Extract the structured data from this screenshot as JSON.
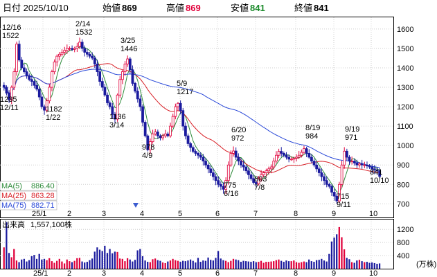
{
  "header": {
    "date_label": "日付 2025/10/10",
    "open_label": "始値",
    "open_value": "869",
    "high_label": "高値",
    "high_value": "869",
    "low_label": "安値",
    "low_value": "841",
    "close_label": "終値",
    "close_value": "841"
  },
  "colors": {
    "up": "#e0003a",
    "down": "#1b1b9e",
    "ma5": "#2e8b3a",
    "ma25": "#d81f26",
    "ma75": "#2a49d8",
    "open_color": "#000000",
    "high_color": "#e0003a",
    "low_color": "#1a8a2a",
    "close_color": "#000000"
  },
  "chart_data": [
    {
      "type": "candlestick",
      "title": "",
      "ylim": [
        630,
        1660
      ],
      "yticks": [
        700,
        800,
        900,
        1000,
        1100,
        1200,
        1300,
        1400,
        1500,
        1600
      ],
      "x_tick_labels": [
        "25/1",
        "2",
        "3",
        "4",
        "5",
        "6",
        "7",
        "8",
        "9",
        "10"
      ],
      "bottom_left_label": "25/1",
      "moving_averages": [
        {
          "name": "MA(5)",
          "value": "886.40"
        },
        {
          "name": "MA(25)",
          "value": "863.28"
        },
        {
          "name": "MA(75)",
          "value": "882.71"
        }
      ],
      "annotations": [
        {
          "date": "12/16",
          "value": "1522"
        },
        {
          "date": "12/11",
          "value": "1235"
        },
        {
          "date": "1/22",
          "value": "1182"
        },
        {
          "date": "2/14",
          "value": "1532"
        },
        {
          "date": "3/14",
          "value": "1136"
        },
        {
          "date": "3/25",
          "value": "1446"
        },
        {
          "date": "4/9",
          "value": "978"
        },
        {
          "date": "5/9",
          "value": "1217"
        },
        {
          "date": "6/16",
          "value": "775"
        },
        {
          "date": "6/20",
          "value": "972"
        },
        {
          "date": "7/8",
          "value": "803"
        },
        {
          "date": "8/19",
          "value": "984"
        },
        {
          "date": "9/11",
          "value": "715"
        },
        {
          "date": "9/19",
          "value": "971"
        },
        {
          "date": "10/10",
          "value": "841"
        }
      ],
      "price_anchors": [
        1300,
        1270,
        1235,
        1300,
        1380,
        1522,
        1440,
        1400,
        1380,
        1360,
        1340,
        1330,
        1310,
        1290,
        1250,
        1200,
        1182,
        1230,
        1300,
        1380,
        1430,
        1460,
        1470,
        1480,
        1490,
        1500,
        1500,
        1495,
        1500,
        1510,
        1532,
        1500,
        1480,
        1470,
        1460,
        1450,
        1420,
        1380,
        1330,
        1300,
        1260,
        1220,
        1200,
        1160,
        1136,
        1260,
        1340,
        1380,
        1420,
        1446,
        1390,
        1320,
        1280,
        1240,
        1200,
        1120,
        1050,
        978,
        1020,
        1060,
        1070,
        1050,
        1040,
        1050,
        1060,
        1050,
        1100,
        1150,
        1200,
        1217,
        1180,
        1100,
        1050,
        1010,
        990,
        970,
        960,
        950,
        940,
        920,
        900,
        880,
        860,
        840,
        820,
        800,
        790,
        775,
        820,
        900,
        960,
        972,
        940,
        920,
        900,
        890,
        870,
        850,
        830,
        810,
        803,
        830,
        850,
        860,
        870,
        880,
        890,
        920,
        950,
        970,
        960,
        950,
        940,
        930,
        930,
        935,
        940,
        950,
        965,
        984,
        960,
        940,
        920,
        900,
        880,
        860,
        840,
        820,
        800,
        790,
        760,
        740,
        715,
        800,
        900,
        971,
        940,
        920,
        920,
        910,
        900,
        905,
        900,
        900,
        895,
        890,
        880,
        875,
        869,
        841
      ]
    },
    {
      "type": "bar",
      "title": "出来高",
      "value_label": "1,557,100株",
      "unit": "(万株)",
      "ylim": [
        0,
        1500
      ],
      "yticks": [
        400,
        800,
        1200
      ],
      "x_tick_labels": [
        "25/1",
        "2",
        "3",
        "4",
        "5",
        "6",
        "7",
        "8",
        "9",
        "10"
      ],
      "values": [
        650,
        1420,
        480,
        350,
        600,
        250,
        200,
        280,
        300,
        220,
        260,
        380,
        420,
        300,
        450,
        280,
        300,
        260,
        320,
        230,
        180,
        240,
        300,
        220,
        160,
        280,
        230,
        200,
        240,
        320,
        330,
        220,
        190,
        210,
        260,
        310,
        520,
        650,
        580,
        540,
        700,
        480,
        600,
        470,
        520,
        510,
        310,
        300,
        230,
        320,
        280,
        220,
        270,
        560,
        600,
        380,
        250,
        210,
        200,
        290,
        310,
        260,
        240,
        190,
        170,
        220,
        250,
        300,
        260,
        240,
        210,
        240,
        230,
        250,
        280,
        240,
        190,
        330,
        210,
        250,
        240,
        340,
        270,
        250,
        330,
        540,
        310,
        260,
        240,
        200,
        240,
        300,
        280,
        260,
        210,
        240,
        230,
        220,
        210,
        230,
        200,
        210,
        240,
        180,
        210,
        210,
        220,
        230,
        260,
        280,
        240,
        210,
        250,
        230,
        230,
        250,
        200,
        180,
        200,
        220,
        200,
        280,
        230,
        210,
        260,
        270,
        300,
        250,
        220,
        450,
        830,
        950,
        1050,
        1270,
        960,
        590,
        330,
        290,
        200,
        180,
        250,
        270,
        230,
        200,
        210,
        180,
        190,
        170,
        150,
        160
      ]
    }
  ]
}
